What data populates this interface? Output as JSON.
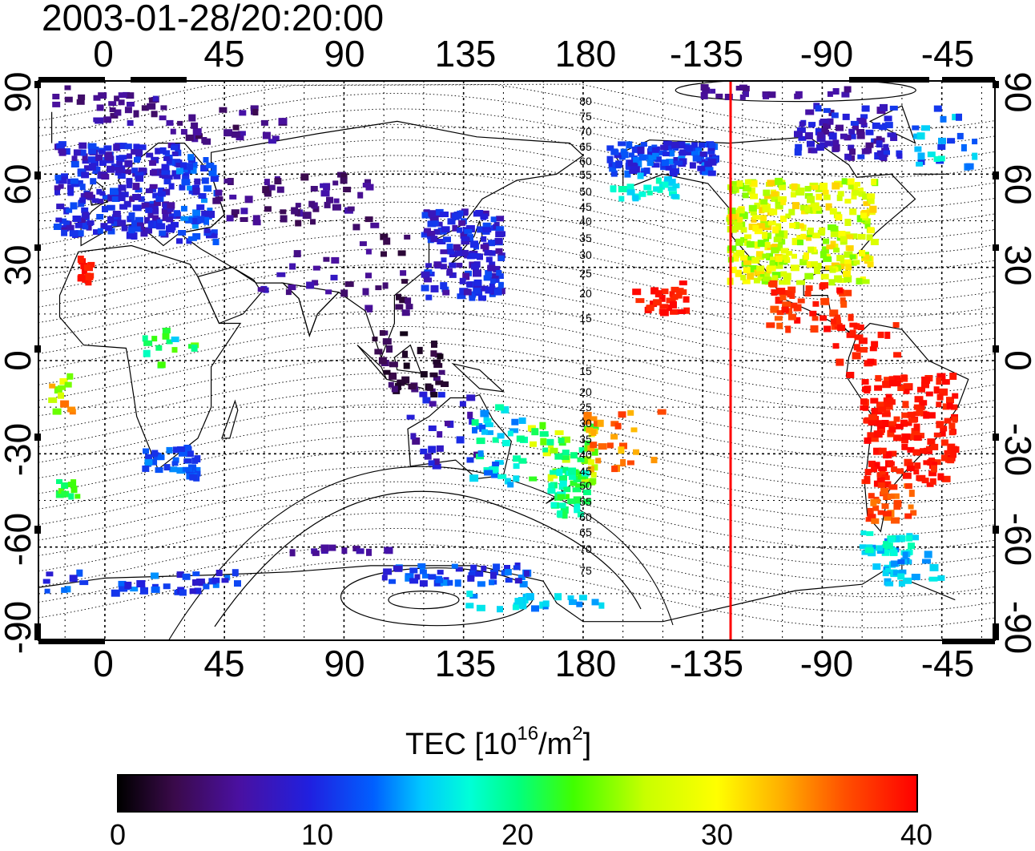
{
  "title": "2003-01-28/20:20:00",
  "axes": {
    "x_ticks": [
      "0",
      "45",
      "90",
      "135",
      "180",
      "-135",
      "-90",
      "-45"
    ],
    "y_ticks_left": [
      "90",
      "60",
      "30",
      "0",
      "-30",
      "-60",
      "-90"
    ],
    "y_ticks_right": [
      "90",
      "60",
      "30",
      "0",
      "-30",
      "-60",
      "-90"
    ]
  },
  "colorbar": {
    "label": "TEC  [10",
    "label_exp1": "16",
    "label_mid": "/m",
    "label_exp2": "2",
    "label_end": "]",
    "ticks": [
      "0",
      "10",
      "20",
      "30",
      "40"
    ],
    "min": 0,
    "max": 40
  },
  "contour_labels": [
    "80",
    "75",
    "70",
    "65",
    "60",
    "55",
    "50",
    "45",
    "40",
    "35",
    "30",
    "25",
    "20",
    "15",
    "15",
    "20",
    "25",
    "30",
    "35",
    "40",
    "45",
    "50",
    "55",
    "60",
    "65",
    "70",
    "75"
  ],
  "terminator_longitude": -125,
  "colors": {
    "terminator": "#ff0000",
    "frame": "#000000"
  }
}
